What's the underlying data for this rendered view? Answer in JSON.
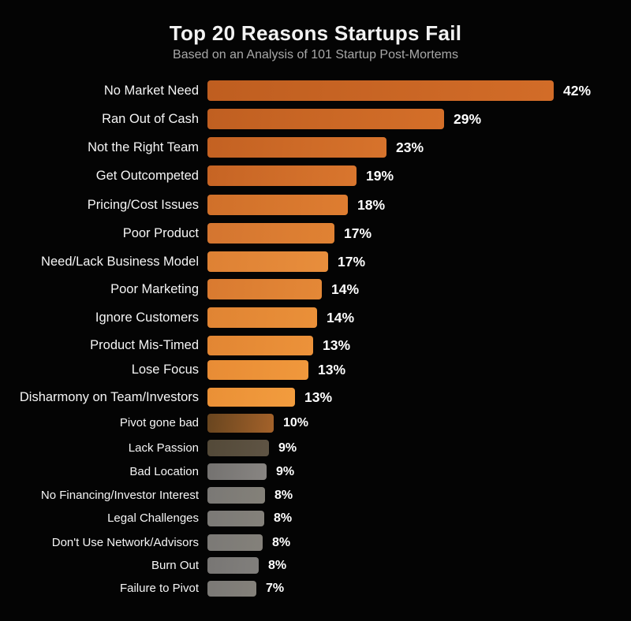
{
  "title": "Top 20 Reasons Startups Fail",
  "subtitle": "Based on an Analysis of 101 Startup Post-Mortems",
  "colors": {
    "background": "#040404",
    "title_text": "#f2f2f2",
    "subtitle_text": "#a8a8a8",
    "label_text": "#f5f5f5",
    "value_text": "#ffffff",
    "accent_orange": "#d9752c",
    "muted_gray": "#7e7c79"
  },
  "chart_data": {
    "type": "bar",
    "orientation": "horizontal",
    "title": "Top 20 Reasons Startups Fail",
    "subtitle": "Based on an Analysis of 101 Startup Post-Mortems",
    "xlabel": "",
    "ylabel": "",
    "xlim": [
      0,
      45
    ],
    "grid": false,
    "legend": "none",
    "value_suffix": "%",
    "categories": [
      "No Market Need",
      "Ran Out of Cash",
      "Not the Right Team",
      "Get Outcompeted",
      "Pricing/Cost Issues",
      "Poor Product",
      "Need/Lack Business Model",
      "Poor Marketing",
      "Ignore Customers",
      "Product Mis-Timed",
      "Lose Focus",
      "Disharmony on Team/Investors",
      "Pivot gone bad",
      "Lack Passion",
      "Bad Location",
      "No Financing/Investor Interest",
      "Legal Challenges",
      "Don't Use Network/Advisors",
      "Burn Out",
      "Failure to Pivot"
    ],
    "values": [
      42,
      29,
      23,
      19,
      18,
      17,
      17,
      14,
      14,
      13,
      13,
      13,
      10,
      9,
      9,
      8,
      8,
      8,
      8,
      7
    ],
    "value_labels": [
      "42%",
      "29%",
      "23%",
      "19%",
      "18%",
      "17%",
      "17%",
      "14%",
      "14%",
      "13%",
      "13%",
      "13%",
      "10%",
      "9%",
      "9%",
      "8%",
      "8%",
      "8%",
      "8%",
      "7%"
    ],
    "bar_colors": [
      [
        "#bf5e20",
        "#d26c28"
      ],
      [
        "#c05f21",
        "#d46f29"
      ],
      [
        "#c36122",
        "#d7732c"
      ],
      [
        "#c66424",
        "#d9762e"
      ],
      [
        "#d0702a",
        "#de7d31"
      ],
      [
        "#d47530",
        "#e08233"
      ],
      [
        "#de8134",
        "#e88e3c"
      ],
      [
        "#d97a30",
        "#e48837"
      ],
      [
        "#e08433",
        "#ea9039"
      ],
      [
        "#e28633",
        "#ec923a"
      ],
      [
        "#e88c35",
        "#f0983c"
      ],
      [
        "#ea9036",
        "#f29c3e"
      ],
      [
        "#68451f",
        "#a4622a"
      ],
      [
        "#534938",
        "#5f5444"
      ],
      [
        "#747270",
        "#888582"
      ],
      [
        "#7a7875",
        "#848179"
      ],
      [
        "#7b7976",
        "#84817a"
      ],
      [
        "#7b7976",
        "#84817a"
      ],
      [
        "#787674",
        "#817f7c"
      ],
      [
        "#7b7976",
        "#84817a"
      ]
    ]
  }
}
